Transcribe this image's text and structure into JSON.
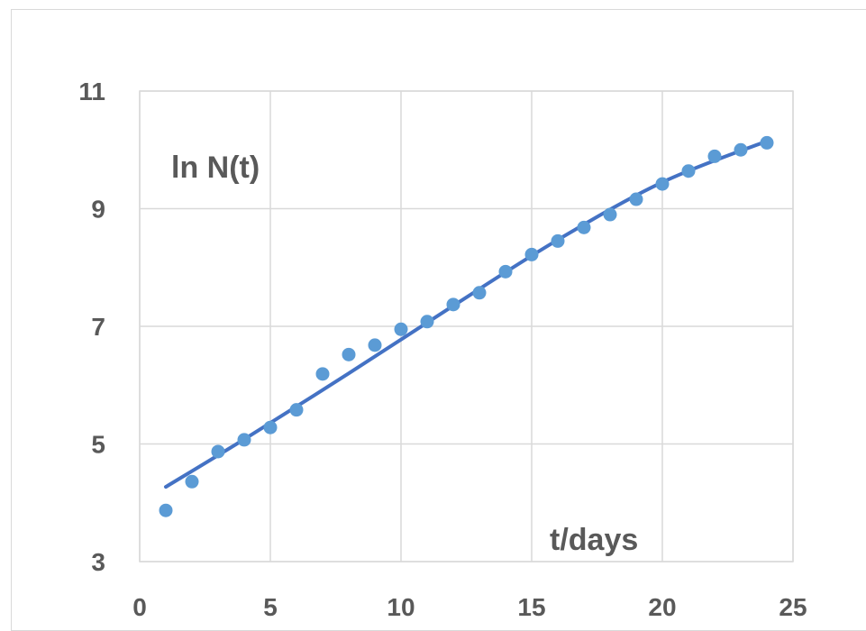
{
  "chart_data": {
    "type": "scatter",
    "title": "",
    "xlabel": "t/days",
    "ylabel": "ln N(t)",
    "xlim": [
      0,
      25
    ],
    "ylim": [
      3,
      11
    ],
    "xticks": [
      0,
      5,
      10,
      15,
      20,
      25
    ],
    "yticks": [
      3,
      5,
      7,
      9,
      11
    ],
    "xtick_labels": [
      "0",
      "5",
      "10",
      "15",
      "20",
      "25"
    ],
    "ytick_labels": [
      "3",
      "5",
      "7",
      "9",
      "11"
    ],
    "grid": true,
    "legend": "none",
    "series": [
      {
        "kind": "points",
        "color": "#5b9bd5",
        "x": [
          1,
          2,
          3,
          4,
          5,
          6,
          7,
          8,
          9,
          10,
          11,
          12,
          13,
          14,
          15,
          16,
          17,
          18,
          19,
          20,
          21,
          22,
          23,
          24
        ],
        "y": [
          3.87,
          4.36,
          4.87,
          5.07,
          5.28,
          5.58,
          6.19,
          6.52,
          6.68,
          6.95,
          7.08,
          7.37,
          7.57,
          7.93,
          8.22,
          8.45,
          8.68,
          8.9,
          9.16,
          9.42,
          9.64,
          9.89,
          10.0,
          10.12
        ]
      },
      {
        "kind": "fit-line",
        "color": "#4472c4",
        "x": [
          1,
          4,
          8,
          12,
          16,
          20,
          24
        ],
        "y": [
          4.27,
          5.08,
          6.2,
          7.35,
          8.47,
          9.45,
          10.15
        ]
      }
    ]
  }
}
